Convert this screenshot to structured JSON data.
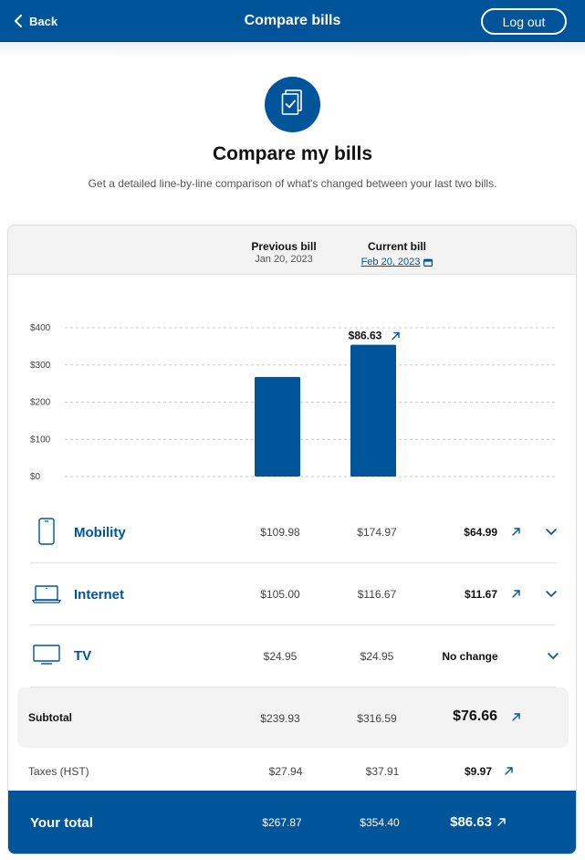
{
  "header": {
    "back_label": "Back",
    "title": "Compare bills",
    "logout_label": "Log out"
  },
  "hero": {
    "icon": "bill-check-icon",
    "heading": "Compare my bills",
    "subtitle": "Get a detailed line-by-line comparison of what's changed between your last two bills."
  },
  "columns": {
    "previous": {
      "label": "Previous bill",
      "date": "Jan 20, 2023"
    },
    "current": {
      "label": "Current bill",
      "date": "Feb 20, 2023",
      "date_icon": "calendar-icon"
    }
  },
  "chart_data": {
    "type": "bar",
    "categories": [
      "Previous bill",
      "Current bill"
    ],
    "values": [
      267.87,
      354.4
    ],
    "ylim": [
      0,
      400
    ],
    "yticks": [
      0,
      100,
      200,
      300,
      400
    ],
    "ytick_labels": [
      "$0",
      "$100",
      "$200",
      "$300",
      "$400"
    ],
    "annotation": {
      "category": "Current bill",
      "text": "$86.63",
      "icon": "arrow-up-right-icon"
    },
    "bar_color": "#00549a",
    "grid": true
  },
  "services": [
    {
      "name": "Mobility",
      "icon": "phone-icon",
      "previous": "$109.98",
      "current": "$174.97",
      "difference": "$64.99",
      "trend": "up"
    },
    {
      "name": "Internet",
      "icon": "laptop-icon",
      "previous": "$105.00",
      "current": "$116.67",
      "difference": "$11.67",
      "trend": "up"
    },
    {
      "name": "TV",
      "icon": "tv-icon",
      "previous": "$24.95",
      "current": "$24.95",
      "difference": "No change",
      "trend": "none"
    }
  ],
  "subtotal": {
    "label": "Subtotal",
    "previous": "$239.93",
    "current": "$316.59",
    "difference": "$76.66"
  },
  "taxes": {
    "label": "Taxes (HST)",
    "previous": "$27.94",
    "current": "$37.91",
    "difference": "$9.97"
  },
  "total": {
    "label": "Your total",
    "previous": "$267.87",
    "current": "$354.40",
    "difference": "$86.63"
  },
  "colors": {
    "brand": "#00549a",
    "panel": "#f3f3f3"
  }
}
